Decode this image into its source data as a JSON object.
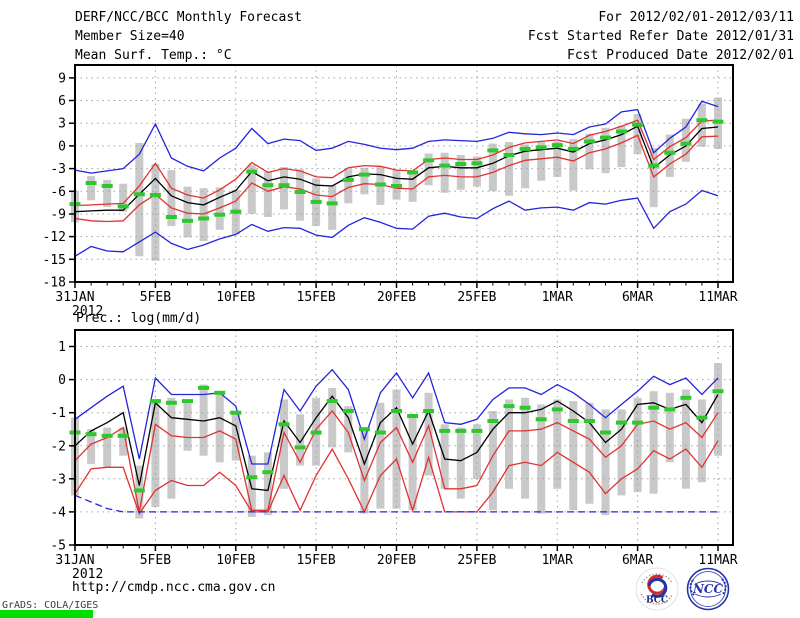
{
  "header": {
    "title": "DERF/NCC/BCC Monthly Forecast",
    "member_size": "Member Size=40",
    "variable": "Mean Surf. Temp.: °C",
    "for_period": "For 2012/02/01-2012/03/11",
    "refer_date": "Fcst Started Refer Date 2012/01/31",
    "produced_date": "Fcst Produced Date 2012/02/01"
  },
  "footer": {
    "url": "http://cmdp.ncc.cma.gov.cn",
    "grads_credit": "GrADS: COLA/IGES",
    "bcc_logo_text": "BCC",
    "ncc_logo_text": "NCC"
  },
  "colors": {
    "line_blue": "#2424dd",
    "line_red": "#e13232",
    "line_black": "#000000",
    "obs_green": "#2ec82e",
    "bar_gray": "#c9c9c9",
    "grid_gray": "#a3a3a3",
    "stamp_green": "#00dd00"
  },
  "chart_data": [
    {
      "name": "temperature",
      "type": "line",
      "title": "Mean Surf. Temp.: °C",
      "x_tick_labels": [
        "31JAN",
        "5FEB",
        "10FEB",
        "15FEB",
        "20FEB",
        "25FEB",
        "1MAR",
        "6MAR",
        "11MAR"
      ],
      "x_tick_days": [
        0,
        5,
        10,
        15,
        20,
        25,
        30,
        35,
        40
      ],
      "x_year_label": "2012",
      "ylim": [
        -18,
        10.7
      ],
      "yticks": [
        9,
        6,
        3,
        0,
        -3,
        -6,
        -9,
        -12,
        -15,
        -18
      ],
      "grid": "dotted",
      "legend": "none",
      "series": [
        {
          "name": "ens-max",
          "color": "#2424dd",
          "values": [
            -3.2,
            -3.6,
            -3.3,
            -3.0,
            -1.1,
            2.9,
            -1.6,
            -2.7,
            -3.3,
            -1.6,
            -0.3,
            2.3,
            0.3,
            0.9,
            0.7,
            -0.6,
            -0.3,
            0.6,
            0.2,
            -0.3,
            -0.5,
            -0.3,
            0.6,
            0.8,
            0.7,
            0.6,
            1.0,
            1.8,
            1.6,
            1.5,
            1.7,
            1.5,
            2.5,
            2.9,
            4.5,
            4.8,
            -0.9,
            1.0,
            2.5,
            5.9,
            5.2
          ]
        },
        {
          "name": "upper-spread",
          "color": "#e13232",
          "values": [
            -7.9,
            -7.8,
            -7.7,
            -7.6,
            -5.3,
            -2.3,
            -5.6,
            -6.5,
            -6.9,
            -5.8,
            -4.4,
            -2.2,
            -3.5,
            -3.0,
            -3.3,
            -4.1,
            -4.2,
            -2.9,
            -2.6,
            -2.7,
            -3.2,
            -3.3,
            -1.8,
            -1.6,
            -1.8,
            -1.8,
            -1.2,
            -0.2,
            0.4,
            0.6,
            0.8,
            0.3,
            1.4,
            1.9,
            2.6,
            3.4,
            -1.8,
            -0.1,
            1.1,
            3.3,
            3.4
          ]
        },
        {
          "name": "ens-mean",
          "color": "#000000",
          "values": [
            -8.7,
            -8.6,
            -8.5,
            -8.5,
            -6.4,
            -4.3,
            -6.6,
            -7.5,
            -7.8,
            -6.8,
            -5.9,
            -3.4,
            -4.6,
            -4.1,
            -4.4,
            -5.2,
            -5.3,
            -4.1,
            -3.7,
            -3.8,
            -4.3,
            -4.4,
            -2.9,
            -2.7,
            -2.9,
            -2.9,
            -2.3,
            -1.3,
            -0.7,
            -0.5,
            -0.3,
            -0.8,
            0.3,
            0.8,
            1.5,
            2.6,
            -2.9,
            -1.2,
            0.0,
            2.3,
            2.5
          ]
        },
        {
          "name": "lower-spread",
          "color": "#e13232",
          "values": [
            -9.6,
            -9.9,
            -10.0,
            -9.9,
            -7.8,
            -6.4,
            -8.2,
            -8.9,
            -9.0,
            -8.2,
            -7.3,
            -4.9,
            -6.0,
            -5.4,
            -5.7,
            -6.5,
            -6.7,
            -5.5,
            -5.0,
            -5.1,
            -5.6,
            -5.7,
            -4.1,
            -3.9,
            -4.1,
            -4.1,
            -3.5,
            -2.6,
            -1.9,
            -1.7,
            -1.5,
            -2.0,
            -0.9,
            -0.4,
            0.4,
            1.4,
            -4.1,
            -2.4,
            -1.1,
            1.2,
            1.3
          ]
        },
        {
          "name": "ens-min",
          "color": "#2424dd",
          "values": [
            -14.6,
            -13.3,
            -13.9,
            -14.0,
            -12.7,
            -11.4,
            -12.9,
            -13.7,
            -13.1,
            -12.3,
            -11.7,
            -10.4,
            -11.3,
            -10.8,
            -10.9,
            -11.8,
            -12.1,
            -10.5,
            -9.5,
            -10.1,
            -10.9,
            -11.0,
            -9.3,
            -8.9,
            -9.4,
            -9.6,
            -8.3,
            -7.3,
            -8.5,
            -8.2,
            -8.1,
            -8.5,
            -7.5,
            -7.7,
            -7.2,
            -6.9,
            -10.9,
            -8.7,
            -7.7,
            -5.9,
            -6.6
          ]
        }
      ],
      "observations": {
        "name": "observed",
        "color": "#2ec82e",
        "values": [
          -7.7,
          -4.9,
          -5.3,
          -8.0,
          -6.4,
          -6.5,
          -9.4,
          -9.9,
          -9.6,
          -9.1,
          -8.7,
          -3.4,
          -5.2,
          -5.2,
          -6.1,
          -7.4,
          -7.6,
          -4.5,
          -3.8,
          -5.1,
          -5.3,
          -3.5,
          -1.9,
          -2.6,
          -2.4,
          -2.3,
          -0.6,
          -1.2,
          -0.4,
          -0.2,
          0.1,
          -0.4,
          0.6,
          1.1,
          1.9,
          2.8,
          -2.6,
          -0.9,
          0.3,
          3.4,
          3.2
        ]
      },
      "spread_bars": {
        "color": "#c9c9c9",
        "top": [
          -5.9,
          -4.0,
          -4.5,
          -5.0,
          0.4,
          -2.4,
          -3.2,
          -5.4,
          -5.6,
          -5.5,
          -5.8,
          -2.5,
          -3.4,
          -2.8,
          -3.1,
          -4.3,
          -5.2,
          -3.1,
          -2.9,
          -2.8,
          -3.2,
          -3.4,
          -1.0,
          -0.9,
          -1.2,
          -1.4,
          0.3,
          0.5,
          0.2,
          0.5,
          0.6,
          0.9,
          1.6,
          2.4,
          2.7,
          4.2,
          -0.3,
          1.5,
          3.6,
          5.6,
          6.4
        ],
        "bottom": [
          -10.1,
          -7.2,
          -8.1,
          -8.7,
          -14.6,
          -15.2,
          -10.6,
          -12.1,
          -12.6,
          -11.1,
          -11.7,
          -9.0,
          -9.4,
          -8.4,
          -9.9,
          -10.6,
          -11.1,
          -7.6,
          -6.4,
          -7.8,
          -7.1,
          -7.4,
          -5.2,
          -6.2,
          -5.8,
          -5.4,
          -6.0,
          -6.6,
          -5.6,
          -4.6,
          -4.1,
          -5.9,
          -3.1,
          -3.6,
          -2.8,
          -1.1,
          -8.1,
          -4.1,
          -2.1,
          -0.1,
          -0.4
        ]
      }
    },
    {
      "name": "precipitation",
      "type": "line",
      "title": "Prec.: log(mm/d)",
      "x_tick_labels": [
        "31JAN",
        "5FEB",
        "10FEB",
        "15FEB",
        "20FEB",
        "25FEB",
        "1MAR",
        "6MAR",
        "11MAR"
      ],
      "x_tick_days": [
        0,
        5,
        10,
        15,
        20,
        25,
        30,
        35,
        40
      ],
      "x_year_label": "2012",
      "ylim": [
        -5,
        1.5
      ],
      "yticks": [
        1,
        0,
        -1,
        -2,
        -3,
        -4,
        -5
      ],
      "grid": "dotted",
      "legend": "none",
      "series": [
        {
          "name": "ens-max",
          "color": "#2424dd",
          "values": [
            -1.2,
            -0.85,
            -0.5,
            -0.2,
            -2.4,
            0.05,
            -0.45,
            -0.45,
            -0.45,
            -0.4,
            -0.8,
            -2.55,
            -2.55,
            -0.3,
            -0.95,
            -0.2,
            0.3,
            -0.3,
            -1.8,
            -0.4,
            0.2,
            -0.55,
            0.2,
            -1.3,
            -1.35,
            -1.2,
            -0.6,
            -0.25,
            -0.25,
            -0.45,
            -0.15,
            -0.4,
            -0.75,
            -1.15,
            -0.75,
            -0.35,
            0.1,
            -0.15,
            0.05,
            -0.45,
            0.05
          ]
        },
        {
          "name": "upper-spread",
          "color": "#e13232",
          "values": [
            -2.45,
            -1.95,
            -1.75,
            -1.45,
            -4.0,
            -1.35,
            -1.7,
            -1.75,
            -1.75,
            -1.55,
            -1.8,
            -3.95,
            -3.95,
            -1.6,
            -2.5,
            -1.5,
            -0.95,
            -1.6,
            -3.05,
            -1.9,
            -1.45,
            -2.5,
            -1.4,
            -3.3,
            -3.3,
            -3.2,
            -2.3,
            -1.55,
            -1.55,
            -1.5,
            -1.3,
            -1.55,
            -1.8,
            -2.35,
            -2.0,
            -1.35,
            -1.25,
            -1.5,
            -1.3,
            -1.75,
            -1.0
          ]
        },
        {
          "name": "ens-mean",
          "color": "#000000",
          "values": [
            -2.0,
            -1.55,
            -1.3,
            -1.0,
            -3.2,
            -0.7,
            -1.15,
            -1.2,
            -1.25,
            -1.15,
            -1.4,
            -3.3,
            -3.35,
            -1.25,
            -1.9,
            -1.15,
            -0.5,
            -1.15,
            -2.55,
            -1.3,
            -0.85,
            -1.95,
            -0.95,
            -2.4,
            -2.45,
            -2.2,
            -1.5,
            -1.0,
            -1.0,
            -0.9,
            -0.65,
            -0.95,
            -1.3,
            -1.9,
            -1.5,
            -0.75,
            -0.7,
            -0.9,
            -0.75,
            -1.3,
            -0.45
          ]
        },
        {
          "name": "lower-spread",
          "color": "#e13232",
          "values": [
            -3.45,
            -2.7,
            -2.65,
            -2.65,
            -4.05,
            -3.35,
            -3.05,
            -3.2,
            -3.2,
            -2.8,
            -3.2,
            -4.0,
            -4.0,
            -2.9,
            -3.95,
            -2.9,
            -2.1,
            -3.0,
            -4.0,
            -2.9,
            -2.4,
            -3.95,
            -2.35,
            -4.0,
            -4.0,
            -4.0,
            -3.4,
            -2.6,
            -2.5,
            -2.6,
            -2.2,
            -2.5,
            -2.8,
            -3.45,
            -3.0,
            -2.7,
            -2.15,
            -2.4,
            -2.1,
            -2.65,
            -1.85
          ]
        },
        {
          "name": "ens-min",
          "color": "#2424dd",
          "dashed": true,
          "values": [
            -3.5,
            -3.7,
            -3.9,
            -4.0,
            -4.0,
            -4.0,
            -4.0,
            -4.0,
            -4.0,
            -4.0,
            -4.0,
            -4.0,
            -4.0,
            -4.0,
            -4.0,
            -4.0,
            -4.0,
            -4.0,
            -4.0,
            -4.0,
            -4.0,
            -4.0,
            -4.0,
            -4.0,
            -4.0,
            -4.0,
            -4.0,
            -4.0,
            -4.0,
            -4.0,
            -4.0,
            -4.0,
            -4.0,
            -4.0,
            -4.0,
            -4.0,
            -4.0,
            -4.0,
            -4.0,
            -4.0,
            -4.0
          ]
        }
      ],
      "observations": {
        "name": "observed",
        "color": "#2ec82e",
        "values": [
          -1.6,
          -1.65,
          -1.7,
          -1.7,
          -3.35,
          -0.65,
          -0.7,
          -0.65,
          -0.25,
          -0.4,
          -1.0,
          -2.95,
          -2.8,
          -1.35,
          -2.05,
          -1.6,
          -0.65,
          -0.95,
          -1.5,
          -1.6,
          -0.95,
          -1.1,
          -0.95,
          -1.55,
          -1.55,
          -1.55,
          -1.25,
          -0.8,
          -0.85,
          -1.2,
          -0.9,
          -1.25,
          -1.25,
          -1.6,
          -1.3,
          -1.3,
          -0.85,
          -0.9,
          -0.55,
          -1.15,
          -0.35
        ]
      },
      "spread_bars": {
        "color": "#c9c9c9",
        "top": [
          -1.15,
          -1.5,
          -1.45,
          -1.45,
          -2.6,
          -0.7,
          -0.55,
          -0.6,
          -0.15,
          -0.45,
          -0.95,
          -2.3,
          -2.2,
          -0.6,
          -1.05,
          -0.55,
          -0.25,
          -0.8,
          -1.5,
          -0.7,
          -0.3,
          -1.15,
          -0.4,
          -1.35,
          -1.45,
          -1.35,
          -0.95,
          -0.6,
          -0.55,
          -0.75,
          -0.6,
          -0.65,
          -0.7,
          -0.9,
          -0.9,
          -0.55,
          -0.35,
          -0.4,
          -0.3,
          -0.6,
          0.5
        ],
        "bottom": [
          -3.5,
          -2.55,
          -2.65,
          -2.3,
          -4.2,
          -3.85,
          -3.6,
          -2.15,
          -2.3,
          -2.5,
          -2.45,
          -4.15,
          -4.1,
          -3.3,
          -2.6,
          -2.6,
          -2.05,
          -2.2,
          -4.05,
          -3.9,
          -3.9,
          -3.95,
          -2.9,
          -3.3,
          -3.6,
          -3.0,
          -3.95,
          -3.3,
          -3.6,
          -4.05,
          -3.3,
          -3.95,
          -3.75,
          -4.1,
          -3.5,
          -3.4,
          -3.45,
          -2.5,
          -3.3,
          -3.1,
          -2.3
        ]
      }
    }
  ]
}
